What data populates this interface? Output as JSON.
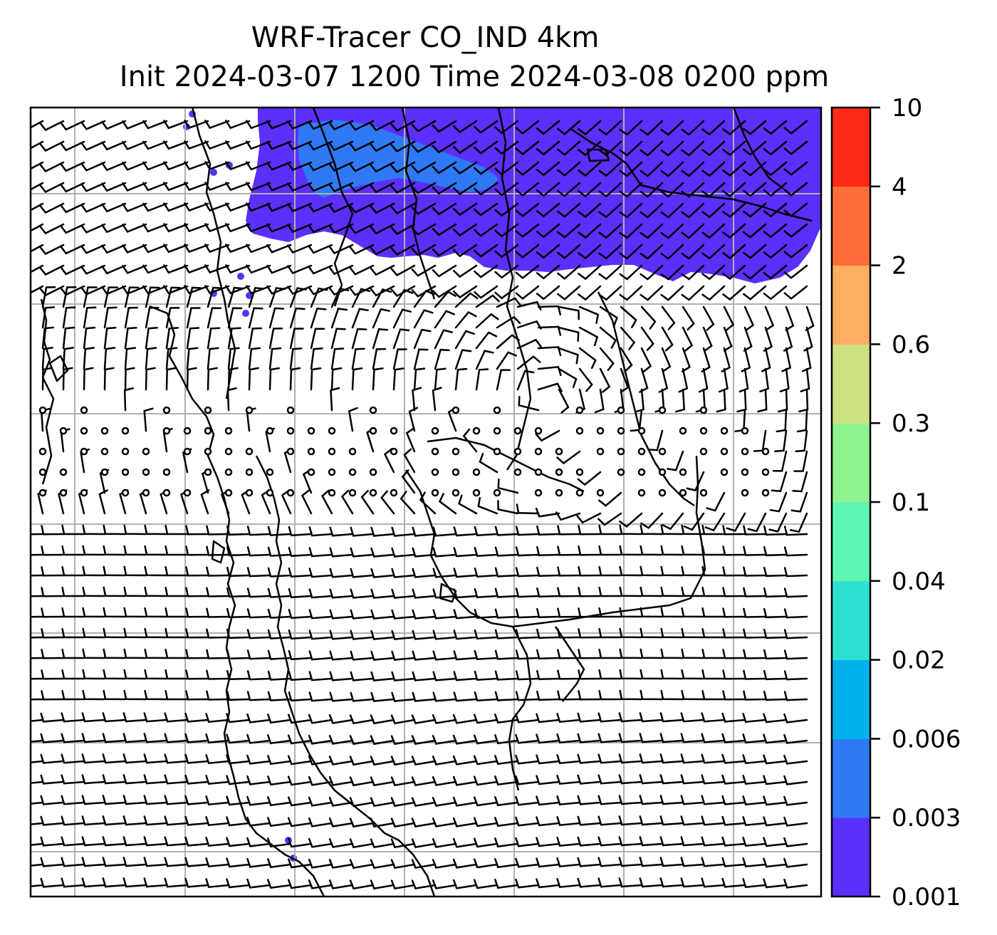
{
  "title": {
    "line1": "WRF-Tracer CO_IND 4km",
    "line2": "Init 2024-03-07 1200 Time 2024-03-08 0200 ppm"
  },
  "colorbar": {
    "levels": [
      "0.001",
      "0.003",
      "0.006",
      "0.02",
      "0.04",
      "0.1",
      "0.3",
      "0.6",
      "2",
      "4",
      "10"
    ],
    "colors": [
      "#5b2ffc",
      "#2f79f6",
      "#00b2ec",
      "#2fe0d2",
      "#5ef5b4",
      "#8ff48f",
      "#cfe283",
      "#fdae61",
      "#ff6e3a",
      "#ff2a18"
    ]
  },
  "map": {
    "plume_color": "#5b2ffc",
    "plume_core_color": "#2f79f6",
    "grid_color": "#b0b0b0",
    "coast_color": "#000000",
    "barb_color": "#000000",
    "calm_marker": "circle"
  }
}
